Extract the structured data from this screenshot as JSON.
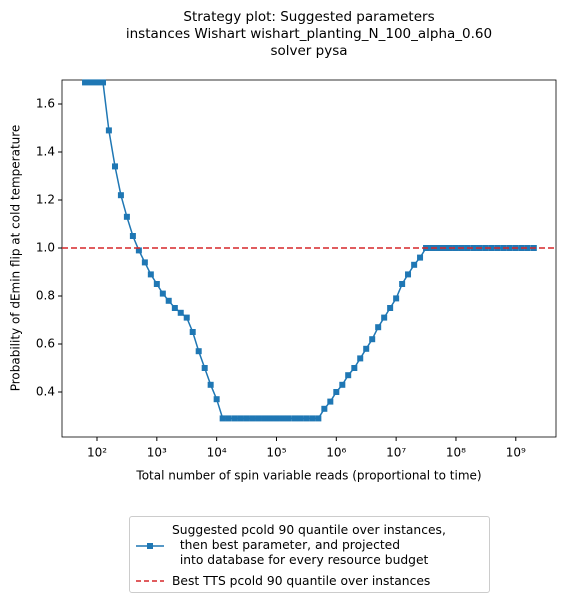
{
  "chart_data": {
    "type": "line",
    "title": [
      "Strategy plot: Suggested parameters",
      "instances Wishart wishart_planting_N_100_alpha_0.60",
      "solver pysa"
    ],
    "x_label": "Total number of spin variable reads (proportional to time)",
    "y_label": "Probability of dEmin flip at cold temperature",
    "x_scale": "log",
    "xlim": [
      26,
      4700000000.0
    ],
    "ylim": [
      0.2125,
      1.7
    ],
    "xticks": [
      {
        "value": 100,
        "label": "10²"
      },
      {
        "value": 1000,
        "label": "10³"
      },
      {
        "value": 10000,
        "label": "10⁴"
      },
      {
        "value": 100000,
        "label": "10⁵"
      },
      {
        "value": 1000000,
        "label": "10⁶"
      },
      {
        "value": 10000000,
        "label": "10⁷"
      },
      {
        "value": 100000000,
        "label": "10⁸"
      },
      {
        "value": 1000000000,
        "label": "10⁹"
      }
    ],
    "yticks": [
      0.4,
      0.6,
      0.8,
      {
        "value": 1,
        "label": "1.0"
      },
      1.2,
      1.4,
      1.6
    ],
    "grid": false,
    "legend": "below",
    "x": [
      63.1,
      79.4,
      100.0,
      126.0,
      158.0,
      200.0,
      251.0,
      316.0,
      398.0,
      501.0,
      631.0,
      794.0,
      1000.0,
      1260.0,
      1580.0,
      2000.0,
      2510.0,
      3160.0,
      3980.0,
      5010.0,
      6310.0,
      7940.0,
      10000.0,
      12600.0,
      15800.0,
      20000.0,
      25100.0,
      31600.0,
      39800.0,
      50100.0,
      63100.0,
      79400.0,
      100000.0,
      126000.0,
      158000.0,
      200000.0,
      251000.0,
      316000.0,
      398000.0,
      501000.0,
      631000.0,
      794000.0,
      1000000.0,
      1260000.0,
      1580000.0,
      2000000.0,
      2510000.0,
      3160000.0,
      3980000.0,
      5010000.0,
      6310000.0,
      7940000.0,
      10000000.0,
      12600000.0,
      15800000.0,
      20000000.0,
      25100000.0,
      31600000.0,
      39800000.0,
      50100000.0,
      63100000.0,
      79400000.0,
      100000000.0,
      126000000.0,
      158000000.0,
      200000000.0,
      251000000.0,
      316000000.0,
      398000000.0,
      501000000.0,
      631000000.0,
      794000000.0,
      1000000000.0,
      1260000000.0,
      1580000000.0,
      2000000000.0
    ],
    "series": [
      {
        "name": "Suggested pcold 90 quantile over instances,\n  then best parameter, and projected\n  into database for every resource budget",
        "color": "#1f77b4",
        "marker": "square",
        "values": [
          1.69,
          1.69,
          1.69,
          1.69,
          1.49,
          1.34,
          1.22,
          1.13,
          1.05,
          0.99,
          0.94,
          0.89,
          0.85,
          0.81,
          0.78,
          0.75,
          0.73,
          0.71,
          0.65,
          0.57,
          0.5,
          0.43,
          0.37,
          0.29,
          0.29,
          0.29,
          0.29,
          0.29,
          0.29,
          0.29,
          0.29,
          0.29,
          0.29,
          0.29,
          0.29,
          0.29,
          0.29,
          0.29,
          0.29,
          0.29,
          0.33,
          0.36,
          0.4,
          0.43,
          0.47,
          0.5,
          0.54,
          0.58,
          0.62,
          0.67,
          0.71,
          0.75,
          0.79,
          0.85,
          0.89,
          0.93,
          0.96,
          1.0,
          1.0,
          1.0,
          1.0,
          1.0,
          1.0,
          1.0,
          1.0,
          1.0,
          1.0,
          1.0,
          1.0,
          1.0,
          1.0,
          1.0,
          1.0,
          1.0,
          1.0,
          1.0
        ]
      }
    ],
    "hline": {
      "name": "Best TTS pcold 90 quantile over instances",
      "value": 1.0,
      "color": "#d62728",
      "style": "dashed"
    }
  }
}
